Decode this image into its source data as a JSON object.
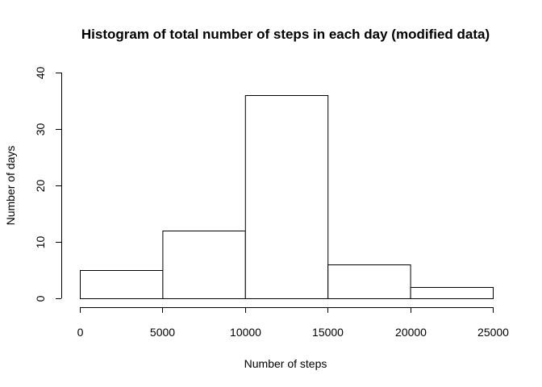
{
  "chart_data": {
    "type": "bar",
    "title": "Histogram of total number of steps in each day (modified data)",
    "xlabel": "Number of steps",
    "ylabel": "Number of days",
    "bins": [
      {
        "start": 0,
        "end": 5000,
        "count": 5
      },
      {
        "start": 5000,
        "end": 10000,
        "count": 12
      },
      {
        "start": 10000,
        "end": 15000,
        "count": 36
      },
      {
        "start": 15000,
        "end": 20000,
        "count": 6
      },
      {
        "start": 20000,
        "end": 25000,
        "count": 2
      }
    ],
    "xlim": [
      0,
      25000
    ],
    "ylim": [
      0,
      40
    ],
    "x_ticks": [
      "0",
      "5000",
      "10000",
      "15000",
      "20000",
      "25000"
    ],
    "y_ticks": [
      "0",
      "10",
      "20",
      "30",
      "40"
    ],
    "grid": false,
    "bar_fill": "#ffffff",
    "bar_stroke": "#000000"
  }
}
